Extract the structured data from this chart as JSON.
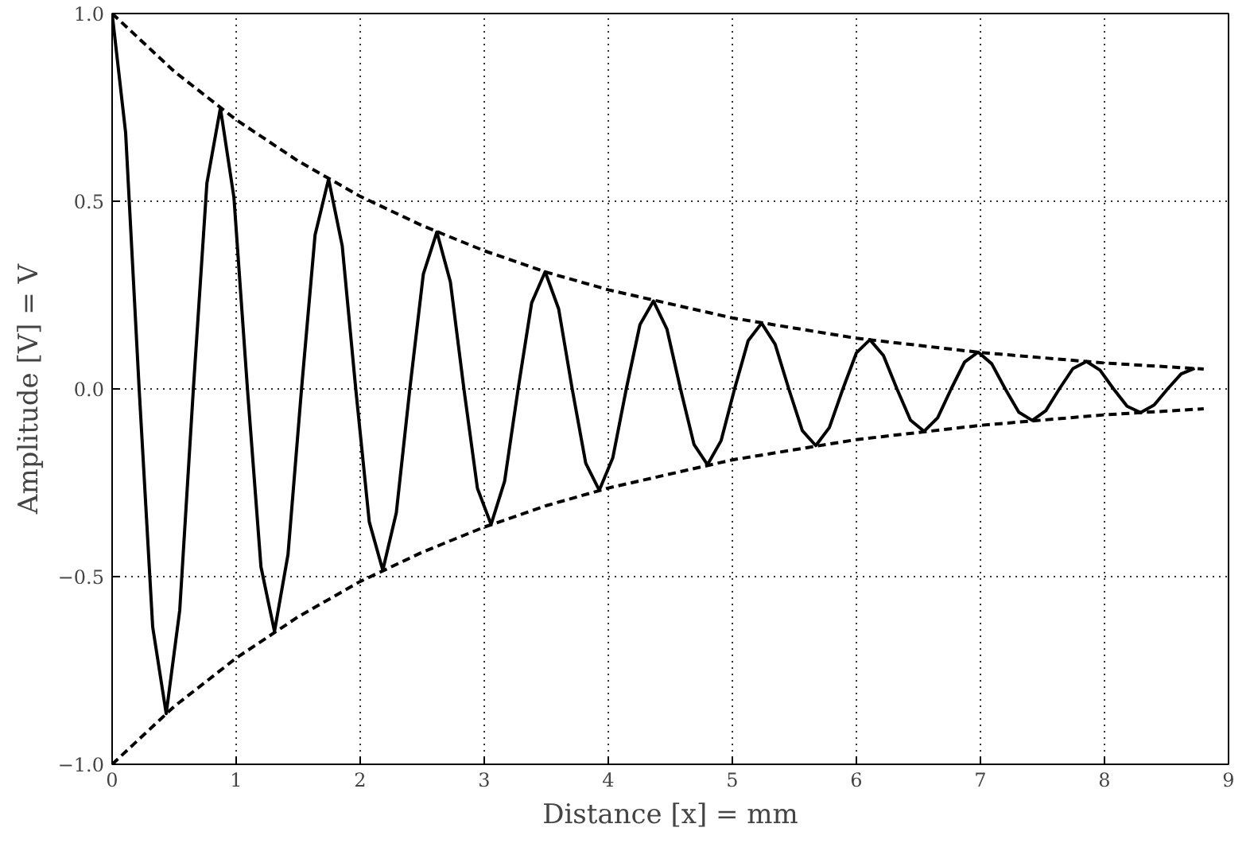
{
  "chart_data": {
    "type": "line",
    "xlabel": "Distance [x] = mm",
    "ylabel": "Amplitude [V] = V",
    "xlim": [
      0,
      9
    ],
    "ylim": [
      -1,
      1
    ],
    "xticks": [
      0,
      1,
      2,
      3,
      4,
      5,
      6,
      7,
      8,
      9
    ],
    "yticks": [
      {
        "value": -1,
        "label": "−1.0"
      },
      {
        "value": -0.5,
        "label": "−0.5"
      },
      {
        "value": 0,
        "label": "0.0"
      },
      {
        "value": 0.5,
        "label": "0.5"
      },
      {
        "value": 1,
        "label": "1.0"
      }
    ],
    "grid": true,
    "marker": "none",
    "series": [
      {
        "color": "#000000",
        "line_style": "solid",
        "x": [
          0,
          0.109,
          0.218,
          0.327,
          0.436,
          0.545,
          0.655,
          0.764,
          0.873,
          0.982,
          1.091,
          1.2,
          1.309,
          1.418,
          1.527,
          1.636,
          1.745,
          1.855,
          1.964,
          2.073,
          2.182,
          2.291,
          2.4,
          2.509,
          2.618,
          2.727,
          2.836,
          2.945,
          3.055,
          3.164,
          3.273,
          3.382,
          3.491,
          3.6,
          3.709,
          3.818,
          3.927,
          4.036,
          4.145,
          4.255,
          4.364,
          4.473,
          4.582,
          4.691,
          4.8,
          4.909,
          5.018,
          5.127,
          5.236,
          5.345,
          5.455,
          5.564,
          5.673,
          5.782,
          5.891,
          6.0,
          6.109,
          6.218,
          6.327,
          6.436,
          6.545,
          6.655,
          6.764,
          6.873,
          6.982,
          7.091,
          7.2,
          7.309,
          7.418,
          7.527,
          7.636,
          7.745,
          7.855,
          7.964,
          8.073,
          8.182,
          8.291,
          8.4,
          8.509,
          8.618,
          8.727
        ],
        "values": [
          1,
          0.682,
          0,
          -0.634,
          -0.865,
          -0.59,
          0,
          0.548,
          0.748,
          0.51,
          0,
          -0.474,
          -0.646,
          -0.441,
          0,
          0.41,
          0.559,
          0.381,
          0,
          -0.354,
          -0.483,
          -0.33,
          0,
          0.306,
          0.418,
          0.285,
          0,
          -0.265,
          -0.361,
          -0.246,
          0,
          0.229,
          0.312,
          0.213,
          0,
          -0.198,
          -0.27,
          -0.184,
          0,
          0.171,
          0.234,
          0.159,
          0,
          -0.148,
          -0.202,
          -0.138,
          0,
          0.128,
          0.175,
          0.119,
          0,
          -0.111,
          -0.151,
          -0.103,
          0,
          0.096,
          0.131,
          0.089,
          0,
          -0.083,
          -0.113,
          -0.077,
          0,
          0.072,
          0.098,
          0.067,
          0,
          -0.062,
          -0.084,
          -0.058,
          0,
          0.054,
          0.073,
          0.05,
          0,
          -0.046,
          -0.063,
          -0.043,
          0,
          0.04,
          0.055
        ]
      },
      {
        "color": "#000000",
        "line_style": "dashed",
        "x": [
          0,
          0.5,
          1,
          1.5,
          2,
          2.5,
          3,
          3.5,
          4,
          5,
          6,
          7,
          8,
          8.8
        ],
        "values": [
          1,
          0.846,
          0.717,
          0.607,
          0.513,
          0.435,
          0.368,
          0.311,
          0.264,
          0.189,
          0.135,
          0.097,
          0.069,
          0.053
        ]
      },
      {
        "color": "#000000",
        "line_style": "dashed",
        "x": [
          0,
          0.5,
          1,
          1.5,
          2,
          2.5,
          3,
          3.5,
          4,
          5,
          6,
          7,
          8,
          8.8
        ],
        "values": [
          -1,
          -0.846,
          -0.717,
          -0.607,
          -0.513,
          -0.435,
          -0.368,
          -0.311,
          -0.264,
          -0.189,
          -0.135,
          -0.097,
          -0.069,
          -0.053
        ]
      }
    ]
  }
}
